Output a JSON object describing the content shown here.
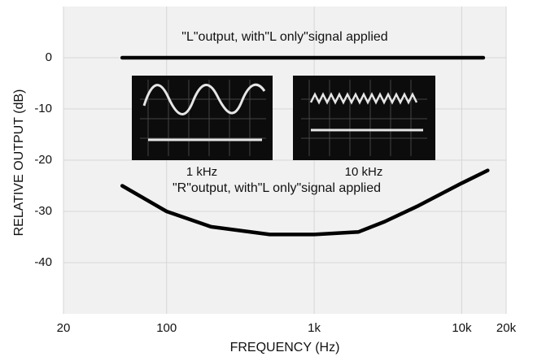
{
  "chart_data": {
    "type": "line",
    "xlabel": "FREQUENCY (Hz)",
    "ylabel": "RELATIVE OUTPUT (dB)",
    "xscale": "log",
    "grid": true,
    "xlim": [
      20,
      20000
    ],
    "ylim": [
      -50,
      10
    ],
    "xticks": [
      20,
      100,
      {
        "value": 1000,
        "label": "1k"
      },
      {
        "value": 10000,
        "label": "10k"
      },
      {
        "value": 20000,
        "label": "20k"
      }
    ],
    "yticks": [
      0,
      -10,
      -20,
      -30,
      -40
    ],
    "inset_labels": [
      "1 kHz",
      "10 kHz"
    ],
    "series": [
      {
        "name": "\"L\"output, with\"L only\"signal applied",
        "color": "#000000",
        "x": [
          50,
          100,
          1000,
          10000,
          14000
        ],
        "values": [
          0,
          0,
          0,
          0,
          0
        ]
      },
      {
        "name": "\"R\"output, with\"L only\"signal applied",
        "color": "#000000",
        "x": [
          50,
          100,
          200,
          500,
          1000,
          2000,
          3000,
          5000,
          10000,
          15000
        ],
        "values": [
          -25,
          -30,
          -33,
          -34.5,
          -34.5,
          -34,
          -32,
          -29,
          -24.5,
          -22
        ]
      }
    ]
  }
}
